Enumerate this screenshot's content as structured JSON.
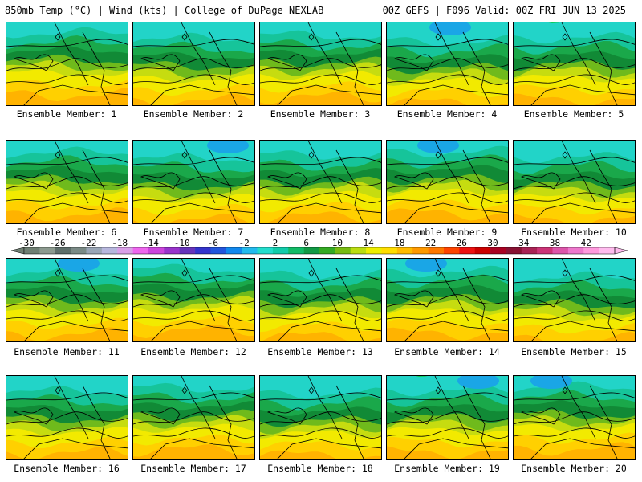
{
  "header": {
    "left_title": "850mb Temp (°C) | Wind (kts) | College of DuPage NEXLAB",
    "right_title": "00Z GEFS | F096 Valid: 00Z FRI JUN 13 2025"
  },
  "members": [
    {
      "label": "Ensemble Member: 1"
    },
    {
      "label": "Ensemble Member: 2"
    },
    {
      "label": "Ensemble Member: 3"
    },
    {
      "label": "Ensemble Member: 4"
    },
    {
      "label": "Ensemble Member: 5"
    },
    {
      "label": "Ensemble Member: 6"
    },
    {
      "label": "Ensemble Member: 7"
    },
    {
      "label": "Ensemble Member: 8"
    },
    {
      "label": "Ensemble Member: 9"
    },
    {
      "label": "Ensemble Member: 10"
    },
    {
      "label": "Ensemble Member: 11"
    },
    {
      "label": "Ensemble Member: 12"
    },
    {
      "label": "Ensemble Member: 13"
    },
    {
      "label": "Ensemble Member: 14"
    },
    {
      "label": "Ensemble Member: 15"
    },
    {
      "label": "Ensemble Member: 16"
    },
    {
      "label": "Ensemble Member: 17"
    },
    {
      "label": "Ensemble Member: 18"
    },
    {
      "label": "Ensemble Member: 19"
    },
    {
      "label": "Ensemble Member: 20"
    }
  ],
  "colorbar": {
    "ticks": [
      "-30",
      "-26",
      "-22",
      "-18",
      "-14",
      "-10",
      "-6",
      "-2",
      "2",
      "6",
      "10",
      "14",
      "18",
      "22",
      "26",
      "30",
      "34",
      "38",
      "42"
    ],
    "colors": [
      "#6f7f73",
      "#8c9a8f",
      "#5e6e6a",
      "#7a8a86",
      "#9aa6b6",
      "#b7b7dd",
      "#d9a0e8",
      "#ee66ee",
      "#cc44dd",
      "#9933cc",
      "#6633bb",
      "#3333cc",
      "#2255dd",
      "#1188ee",
      "#22bbee",
      "#22ddcc",
      "#11ccaa",
      "#11bb66",
      "#119944",
      "#33aa22",
      "#77bb11",
      "#bbdd11",
      "#eeee00",
      "#ffdd00",
      "#ffbb00",
      "#ff9900",
      "#ff7700",
      "#ff4400",
      "#ee1111",
      "#cc0000",
      "#aa0022",
      "#881133",
      "#aa2255",
      "#cc3377",
      "#dd55aa",
      "#ee77cc",
      "#ff99dd",
      "#ffbbee"
    ]
  }
}
